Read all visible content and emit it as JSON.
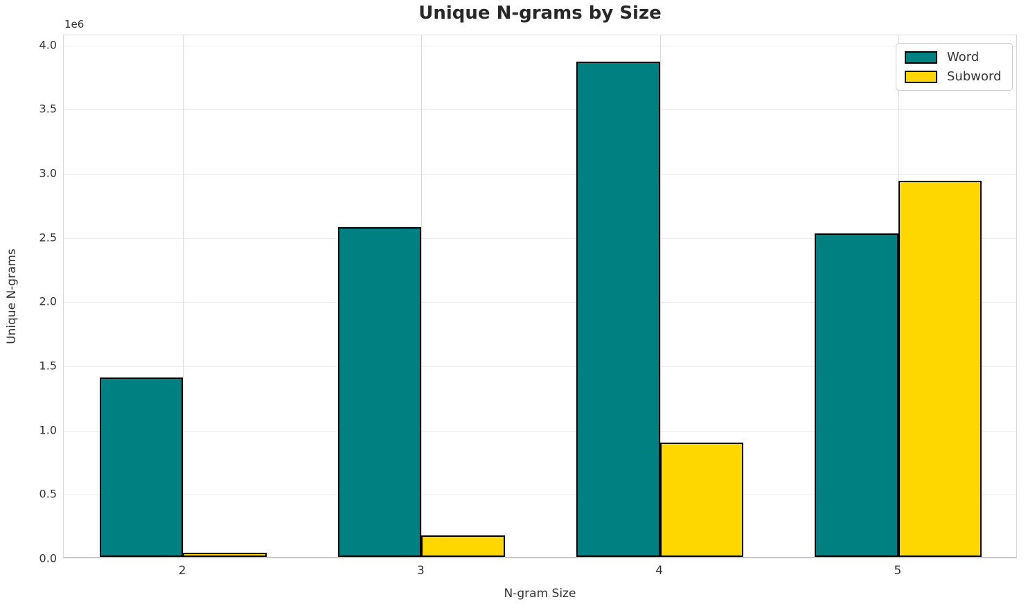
{
  "chart_data": {
    "type": "bar",
    "title": "Unique N-grams by Size",
    "xlabel": "N-gram Size",
    "ylabel": "Unique N-grams",
    "y_offset_text": "1e6",
    "categories": [
      "2",
      "3",
      "4",
      "5"
    ],
    "series": [
      {
        "name": "Word",
        "color": "#008080",
        "values": [
          1400000,
          2570000,
          3860000,
          2520000
        ]
      },
      {
        "name": "Subword",
        "color": "#FFD700",
        "values": [
          30000,
          170000,
          890000,
          2930000
        ]
      }
    ],
    "ylim": [
      0,
      4080000
    ],
    "yticks": [
      0,
      500000,
      1000000,
      1500000,
      2000000,
      2500000,
      3000000,
      3500000,
      4000000
    ],
    "ytick_labels": [
      "0.0",
      "0.5",
      "1.0",
      "1.5",
      "2.0",
      "2.5",
      "3.0",
      "3.5",
      "4.0"
    ],
    "grid": true,
    "legend_position": "upper right",
    "bar_edge_color": "#000000",
    "bar_group_width_fraction": 0.35
  }
}
